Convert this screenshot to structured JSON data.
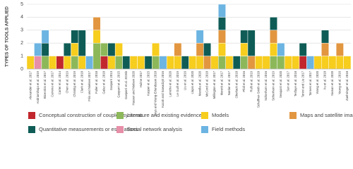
{
  "chart_data": {
    "type": "stacked_bar",
    "y_label": "TYPES OF TOOLS APPLIED",
    "categories": [
      "Alexander et al. 2017",
      "Andriamihaja et al. 2019",
      "Bicevskis et al. 2017",
      "Carreno et al. 2017",
      "Carter et al. 2014",
      "Chen et al. 2019",
      "Chrisitig et al. 2019",
      "Clark et al. 2018",
      "Friis and Nielsen 2017",
      "Fuller et al. 2018",
      "Galaz et al. 2018",
      "Gasparri 2013",
      "Gasparri et al. 2015",
      "Gasparri et al. 2015b",
      "Hauser and Nielsen 2020",
      "Hulme 2017",
      "Kasper et al. 2015",
      "Keys and Wang-Erlandsson 2018",
      "Kozak and Sowadzyk 2016",
      "Lamche et al. 2020",
      "Le Guill et al. 2019",
      "Liu et al. 2016",
      "Llopis et al. 2020",
      "Mandla et al. 2020",
      "McCord et al. 2018",
      "Millington et al. 2017",
      "Moretti et al. 2017",
      "Nordor et al. 2017",
      "Oberlack et al. 2018",
      "Pfoll et al. 2016",
      "Rulli et al. 2019",
      "Schaffner-Smith et al. 2018",
      "Schierhorn et al. 2016",
      "Schierhorn et al. 2019",
      "Seaquist et al. 2020",
      "Sun et al. 2017",
      "Tesfaye et al. 2018",
      "Tonini and Liu 2017",
      "Tonnes et al. 2017",
      "Wang et al. 2020",
      "Xu et al. 2018",
      "Yoosan et al. 2020",
      "Young et al. 2016",
      "Zaehringer et al. 2018"
    ],
    "series": [
      {
        "name": "Conceptual construction of coupled systems",
        "color": "#c1272d",
        "values": [
          0,
          0,
          0,
          0,
          1,
          0,
          0,
          0,
          0,
          0,
          1,
          0,
          0,
          0,
          0,
          0,
          0,
          0,
          0,
          0,
          0,
          0,
          0,
          0,
          0,
          0,
          0,
          0,
          0,
          0,
          0,
          0,
          0,
          0,
          0,
          0,
          0,
          1,
          0,
          0,
          0,
          0,
          0,
          0
        ]
      },
      {
        "name": "Literature and existing evidence",
        "color": "#8db85a",
        "values": [
          0,
          0,
          1,
          0,
          0,
          0,
          1,
          0,
          0,
          2,
          1,
          0,
          1,
          0,
          0,
          0,
          0,
          1,
          0,
          0,
          0,
          0,
          0,
          0,
          0,
          0,
          1,
          0,
          0,
          1,
          0,
          0,
          0,
          1,
          1,
          0,
          0,
          0,
          0,
          0,
          0,
          0,
          0,
          0
        ]
      },
      {
        "name": "Models",
        "color": "#f7cd1e",
        "values": [
          1,
          0,
          0,
          1,
          0,
          1,
          1,
          1,
          0,
          1,
          0,
          1,
          1,
          0,
          1,
          1,
          0,
          1,
          0,
          1,
          1,
          0,
          1,
          1,
          0,
          1,
          1,
          1,
          0,
          1,
          0,
          1,
          1,
          1,
          0,
          1,
          1,
          0,
          0,
          1,
          1,
          1,
          1,
          1
        ]
      },
      {
        "name": "Maps and satellite imagery",
        "color": "#e29640",
        "values": [
          0,
          0,
          0,
          0,
          0,
          0,
          0,
          0,
          0,
          1,
          0,
          0,
          0,
          0,
          0,
          0,
          0,
          0,
          0,
          0,
          1,
          0,
          0,
          1,
          1,
          0,
          1,
          0,
          0,
          0,
          1,
          0,
          0,
          1,
          0,
          0,
          0,
          0,
          0,
          0,
          1,
          0,
          1,
          0
        ]
      },
      {
        "name": "Quantitative measurements or estimations",
        "color": "#0f5c56",
        "values": [
          0,
          0,
          1,
          0,
          0,
          1,
          1,
          2,
          0,
          0,
          0,
          1,
          0,
          1,
          0,
          0,
          1,
          0,
          0,
          0,
          0,
          1,
          0,
          0,
          1,
          0,
          1,
          0,
          1,
          1,
          2,
          0,
          0,
          1,
          0,
          0,
          0,
          1,
          0,
          0,
          1,
          0,
          0,
          0
        ]
      },
      {
        "name": "Social network analysis",
        "color": "#e78ea8",
        "values": [
          0,
          1,
          0,
          0,
          0,
          0,
          0,
          0,
          0,
          0,
          0,
          0,
          0,
          0,
          0,
          0,
          0,
          0,
          0,
          0,
          0,
          0,
          0,
          0,
          0,
          0,
          0,
          0,
          0,
          0,
          0,
          0,
          0,
          0,
          0,
          0,
          0,
          0,
          0,
          0,
          0,
          0,
          0,
          0
        ]
      },
      {
        "name": "Field methods",
        "color": "#6cb4e2",
        "values": [
          0,
          1,
          1,
          0,
          0,
          0,
          0,
          0,
          1,
          0,
          0,
          0,
          0,
          0,
          0,
          0,
          0,
          0,
          1,
          0,
          0,
          0,
          0,
          1,
          0,
          0,
          1,
          0,
          0,
          0,
          0,
          0,
          0,
          0,
          1,
          0,
          0,
          0,
          1,
          0,
          0,
          0,
          0,
          0
        ]
      }
    ],
    "ylim": [
      0,
      5
    ],
    "yticks": [
      0,
      1,
      2,
      3,
      4,
      5
    ],
    "grid": true
  }
}
